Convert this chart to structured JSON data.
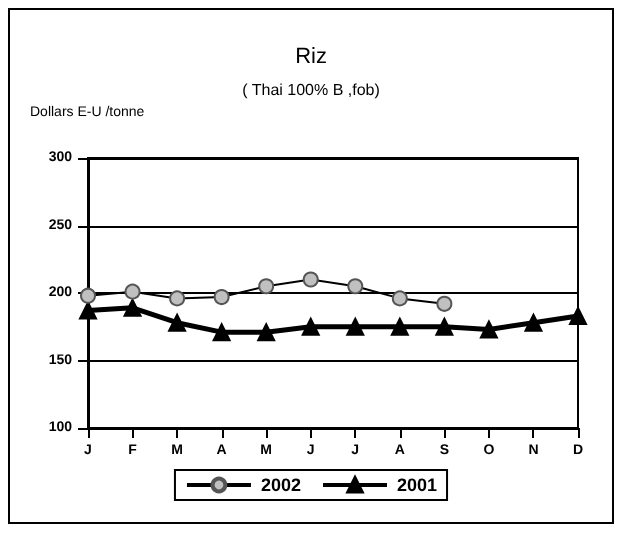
{
  "chart_data": {
    "type": "line",
    "title": "Riz",
    "subtitle": "( Thai 100% B ,fob)",
    "ylabel": "Dollars E-U /tonne",
    "categories": [
      "J",
      "F",
      "M",
      "A",
      "M",
      "J",
      "J",
      "A",
      "S",
      "O",
      "N",
      "D"
    ],
    "series": [
      {
        "name": "2002",
        "color": "#c0c0c0",
        "marker": "circle",
        "values": [
          198,
          201,
          196,
          197,
          205,
          210,
          205,
          196,
          192,
          null,
          null,
          null
        ]
      },
      {
        "name": "2001",
        "color": "#000000",
        "marker": "triangle",
        "values": [
          187,
          189,
          178,
          171,
          171,
          175,
          175,
          175,
          175,
          173,
          178,
          183
        ]
      }
    ],
    "ylim": [
      100,
      300
    ],
    "yticks": [
      100,
      150,
      200,
      250,
      300
    ],
    "grid": "y",
    "legend": "bottom"
  }
}
